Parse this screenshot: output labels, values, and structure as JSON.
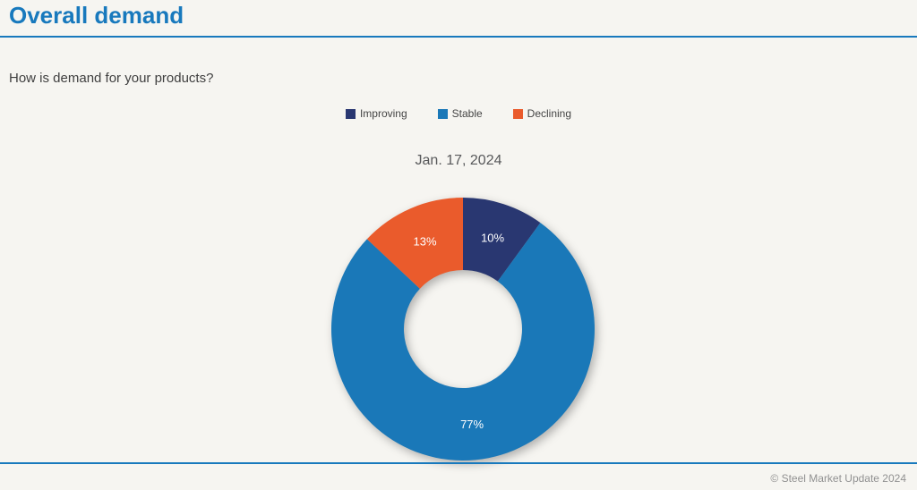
{
  "page": {
    "title": "Overall demand",
    "question": "How is demand for your products?",
    "footer": "© Steel Market Update 2024",
    "accent_color": "#1879bd",
    "background_color": "#f6f5f1"
  },
  "chart_data": {
    "type": "pie",
    "donut": true,
    "title": "Jan. 17, 2024",
    "legend_position": "top",
    "total": 100,
    "slices": [
      {
        "label": "Improving",
        "value": 10,
        "data_label": "10%",
        "color": "#293771"
      },
      {
        "label": "Stable",
        "value": 77,
        "data_label": "77%",
        "color": "#1a78b8"
      },
      {
        "label": "Declining",
        "value": 13,
        "data_label": "13%",
        "color": "#ea5b2c"
      }
    ]
  }
}
